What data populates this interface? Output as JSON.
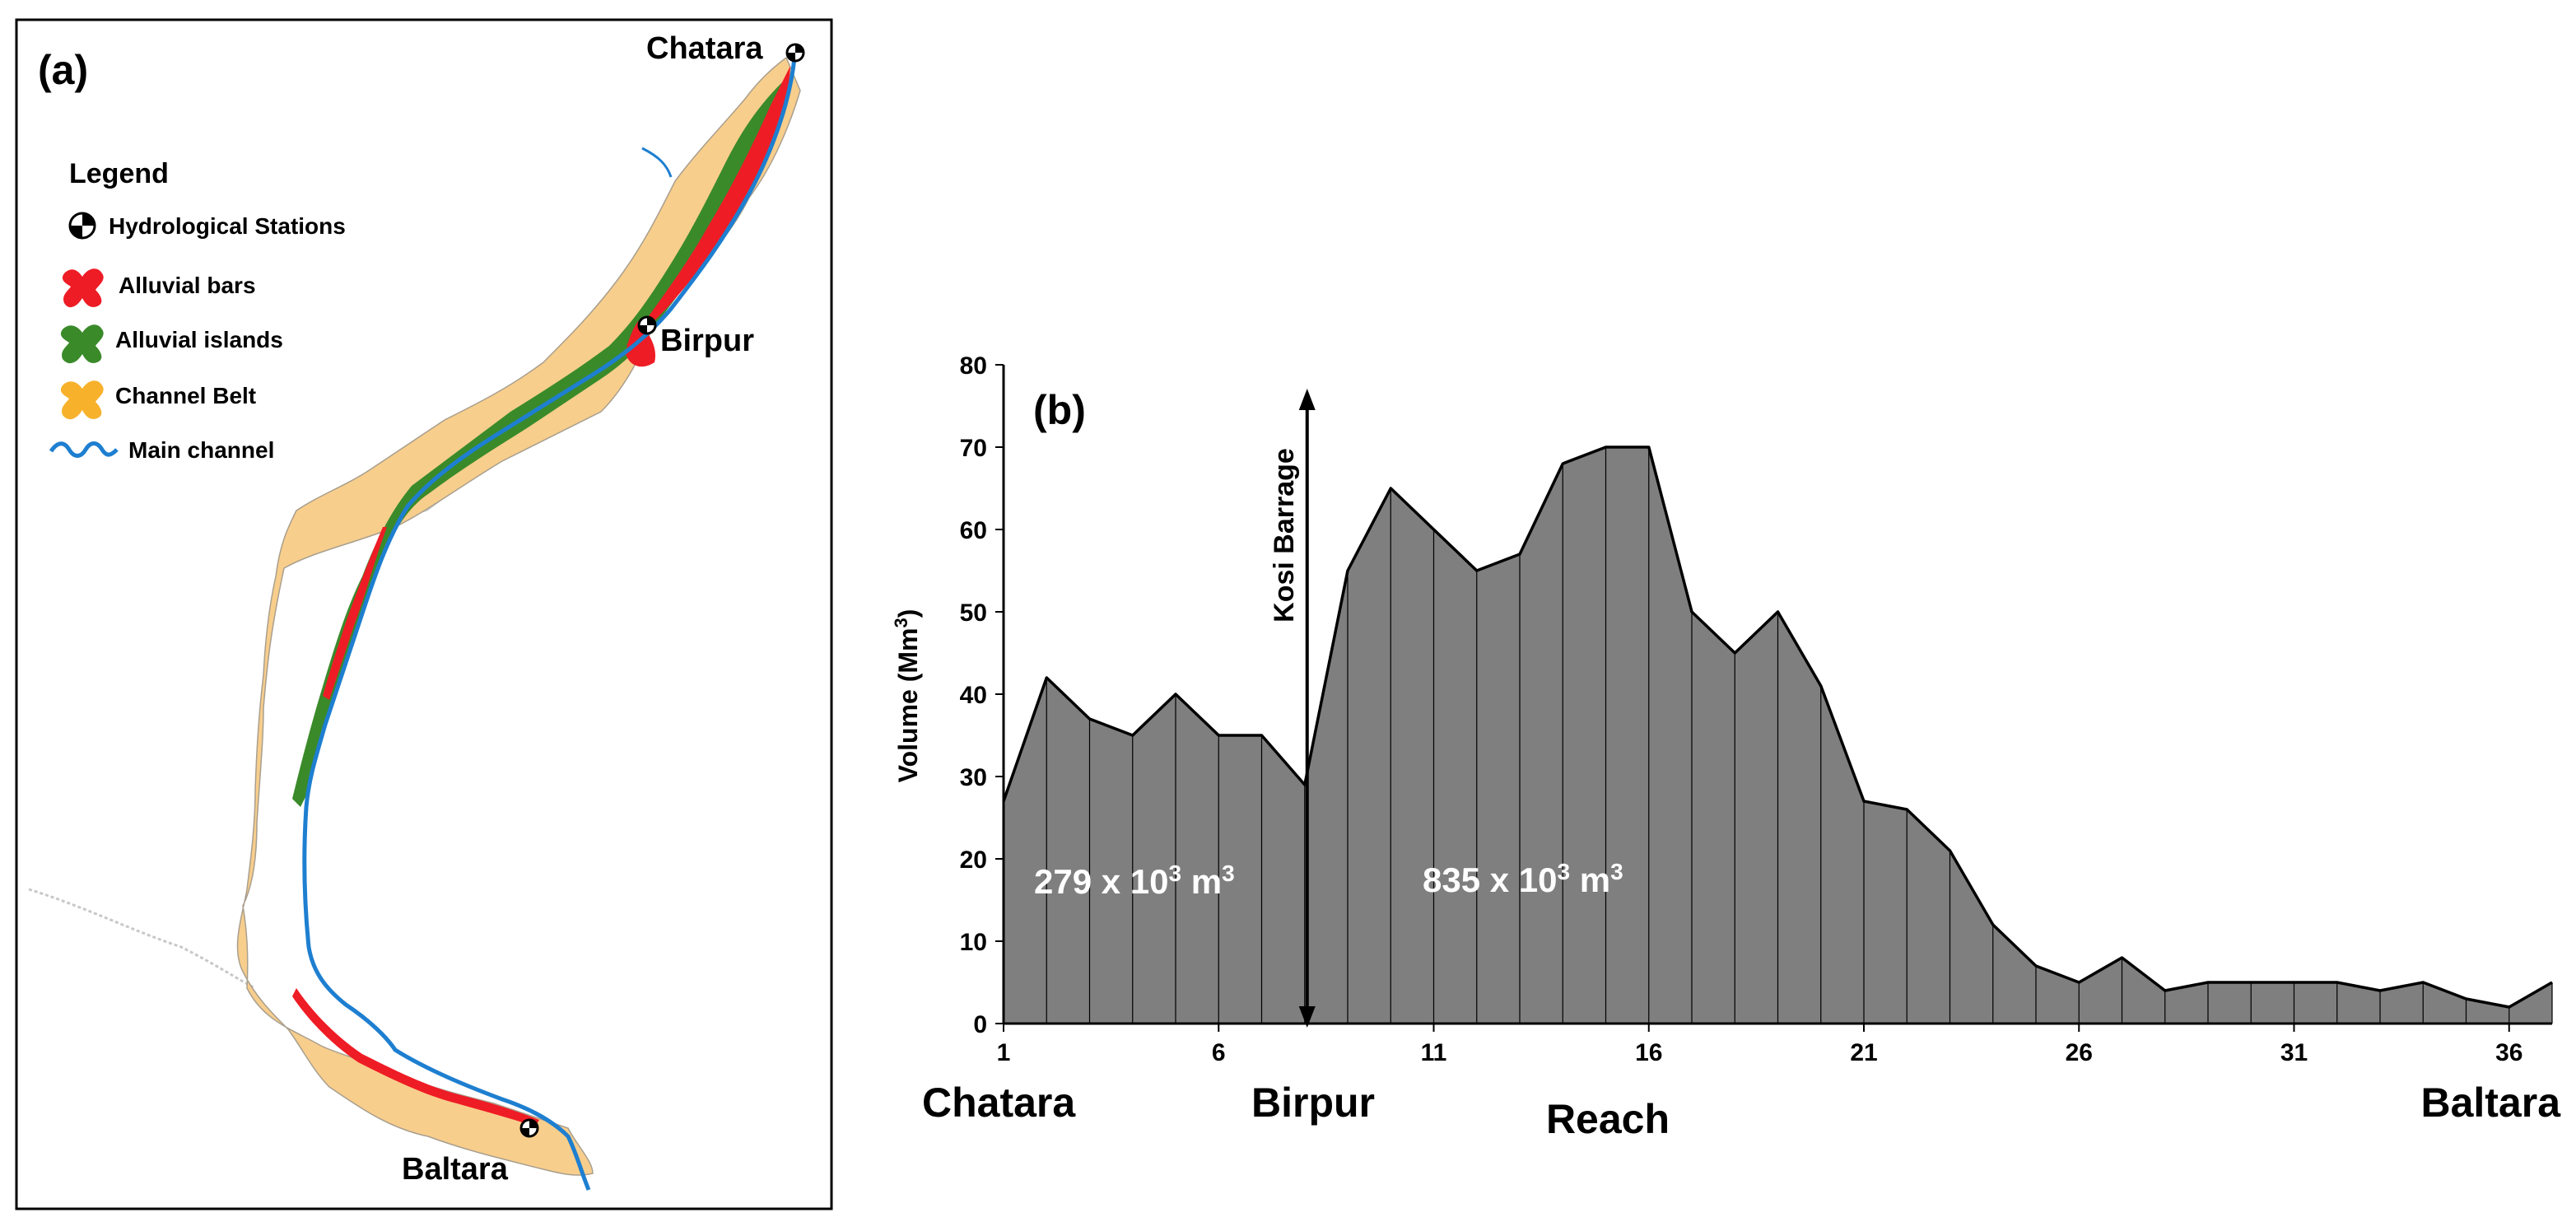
{
  "colors": {
    "channel_belt": "#F8CE8C",
    "alluvial_bars": "#EE1C25",
    "alluvial_islands": "#3A8A2A",
    "main_channel": "#1E7FD0",
    "area_fill": "#7F7F7F",
    "outline": "#000000"
  },
  "map": {
    "panel_label": "(a)",
    "legend_title": "Legend",
    "legend_items": [
      {
        "label": "Hydrological Stations",
        "icon": "station-icon"
      },
      {
        "label": "Alluvial bars",
        "icon": "alluvial-bars-icon"
      },
      {
        "label": "Alluvial islands",
        "icon": "alluvial-islands-icon"
      },
      {
        "label": "Channel Belt",
        "icon": "channel-belt-icon"
      },
      {
        "label": "Main channel",
        "icon": "main-channel-icon"
      }
    ],
    "stations": [
      "Chatara",
      "Birpur",
      "Baltara"
    ]
  },
  "chart_data": {
    "type": "area",
    "panel_label": "(b)",
    "x": [
      1,
      2,
      3,
      4,
      5,
      6,
      7,
      8,
      9,
      10,
      11,
      12,
      13,
      14,
      15,
      16,
      17,
      18,
      19,
      20,
      21,
      22,
      23,
      24,
      25,
      26,
      27,
      28,
      29,
      30,
      31,
      32,
      33,
      34,
      35,
      36,
      37
    ],
    "values": [
      27,
      42,
      37,
      35,
      40,
      35,
      35,
      29,
      55,
      65,
      60,
      55,
      57,
      68,
      70,
      70,
      50,
      45,
      50,
      41,
      27,
      26,
      21,
      12,
      7,
      5,
      8,
      4,
      5,
      5,
      5,
      5,
      4,
      5,
      3,
      2,
      5
    ],
    "xticks": [
      1,
      6,
      11,
      16,
      21,
      26,
      31,
      36
    ],
    "yticks": [
      0,
      10,
      20,
      30,
      40,
      50,
      60,
      70,
      80
    ],
    "xlim": [
      1,
      37
    ],
    "ylim": [
      0,
      80
    ],
    "xlabel": "Reach",
    "ylabel": "Volume (Mm",
    "ylabel_sup": "3",
    "ylabel_end": ")",
    "grid": false,
    "annotation": {
      "label": "Kosi Barrage",
      "x": 8
    },
    "region_labels": [
      {
        "text": "279 x 10",
        "sup": "3",
        "unit": " m",
        "unit_sup": "3"
      },
      {
        "text": "835 x 10",
        "sup": "3",
        "unit": " m",
        "unit_sup": "3"
      }
    ],
    "place_labels": [
      "Chatara",
      "Birpur",
      "Baltara"
    ]
  }
}
